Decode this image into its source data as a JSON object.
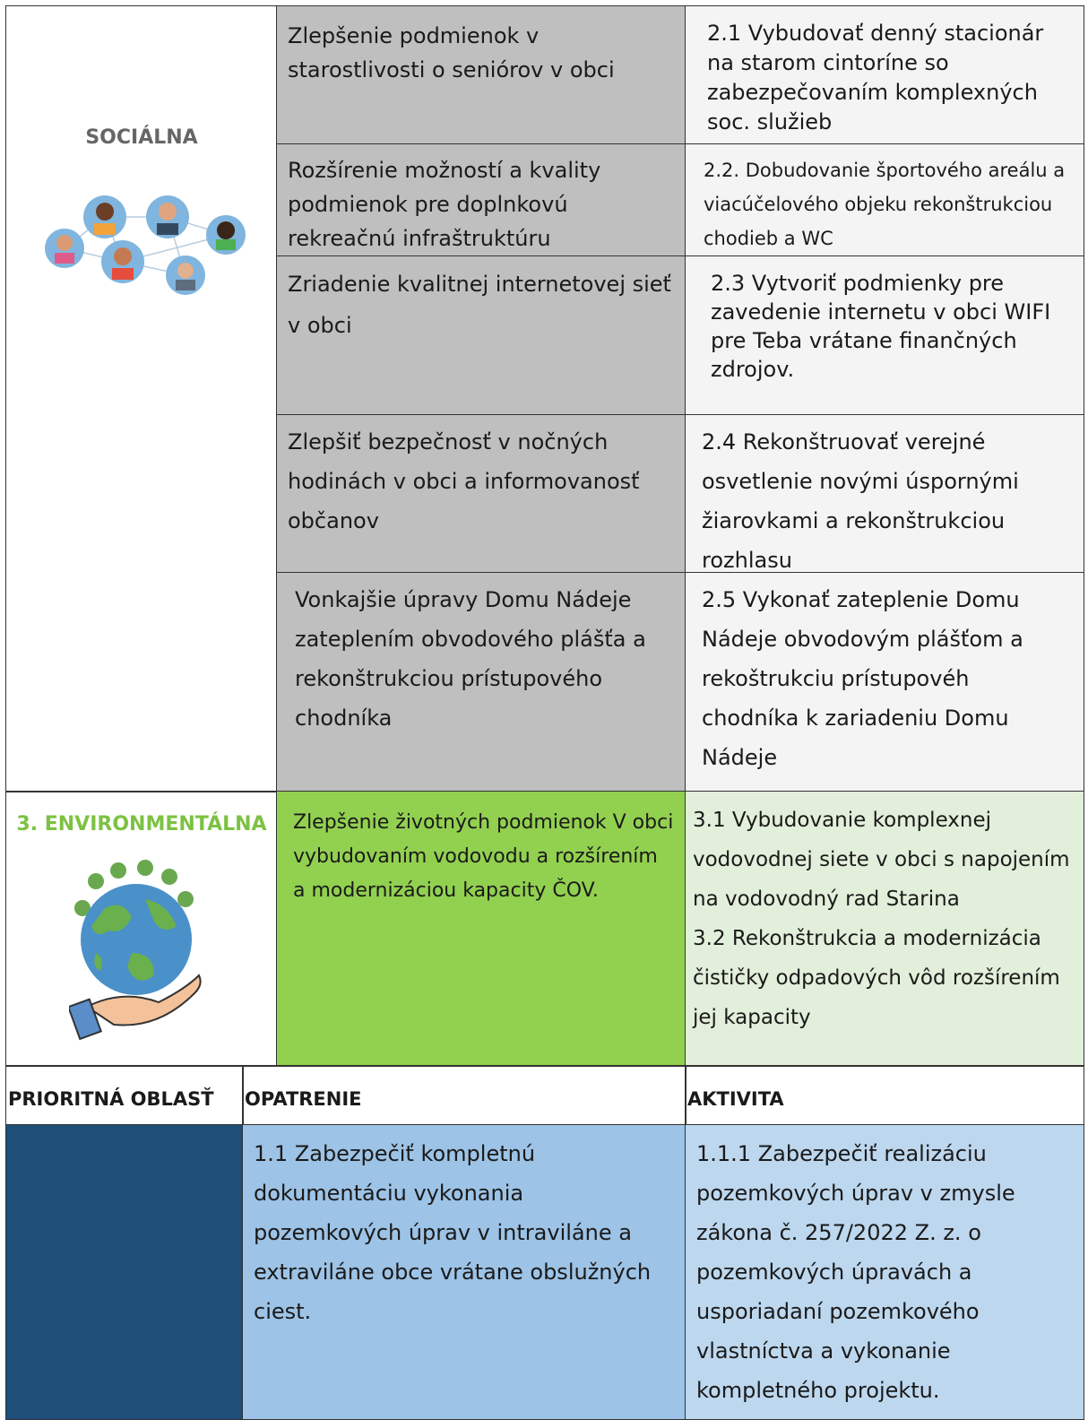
{
  "social": {
    "area": "SOCIÁLNA",
    "rows": [
      {
        "measure": "Zlepšenie podmienok v starostlivosti o seniórov v obci",
        "activity": "2.1 Vybudovať denný stacionár na starom cintoríne so zabezpečovaním komplexných soc. služieb"
      },
      {
        "measure": "Rozšírenie možností a kvality podmienok pre doplnkovú rekreačnú infraštruktúru",
        "activity": "2.2. Dobudovanie športového areálu a viacúčelového objeku rekonštrukciou chodieb a WC"
      },
      {
        "measure": "Zriadenie kvalitnej internetovej sieť v obci",
        "activity": "2.3 Vytvoriť podmienky pre zavedenie internetu v obci WIFI pre Teba vrátane finančných zdrojov."
      },
      {
        "measure": "Zlepšiť bezpečnosť v nočných hodinách v obci a informovanosť občanov",
        "activity": "2.4 Rekonštruovať verejné osvetlenie novými úspornými žiarovkami a rekonštrukciou rozhlasu"
      },
      {
        "measure": "Vonkajšie úpravy Domu Nádeje zateplením obvodového plášťa a rekonštrukciou prístupového chodníka",
        "activity": "2.5 Vykonať zateplenie Domu Nádeje  obvodovým plášťom a rekoštrukciu prístupovéh chodníka k zariadeniu Domu Nádeje"
      }
    ]
  },
  "environmental": {
    "area": "3. ENVIRONMENTÁLNA",
    "measure": "Zlepšenie životných podmienok V obci vybudovaním vodovodu a rozšírením a modernizáciou kapacity ČOV.",
    "activities": [
      "3.1 Vybudovanie komplexnej vodovodnej siete v obci s napojením na  vodovodný rad Starina",
      "3.2 Rekonštrukcia a modernizácia čističky odpadových vôd rozšírením jej kapacity"
    ]
  },
  "header": [
    "PRIORITNÁ OBLASŤ",
    "OPATRENIE",
    "AKTIVITA"
  ],
  "land": {
    "measure": "1.1 Zabezpečiť kompletnú dokumentáciu vykonania pozemkových úprav v intraviláne a extraviláne obce vrátane obslužných ciest.",
    "activity": "1.1.1 Zabezpečiť realizáciu pozemkových úprav v zmysle zákona č. 257/2022 Z. z. o pozemkových úpravách a usporiadaní pozemkového vlastníctva a vykonanie kompletného projektu."
  }
}
